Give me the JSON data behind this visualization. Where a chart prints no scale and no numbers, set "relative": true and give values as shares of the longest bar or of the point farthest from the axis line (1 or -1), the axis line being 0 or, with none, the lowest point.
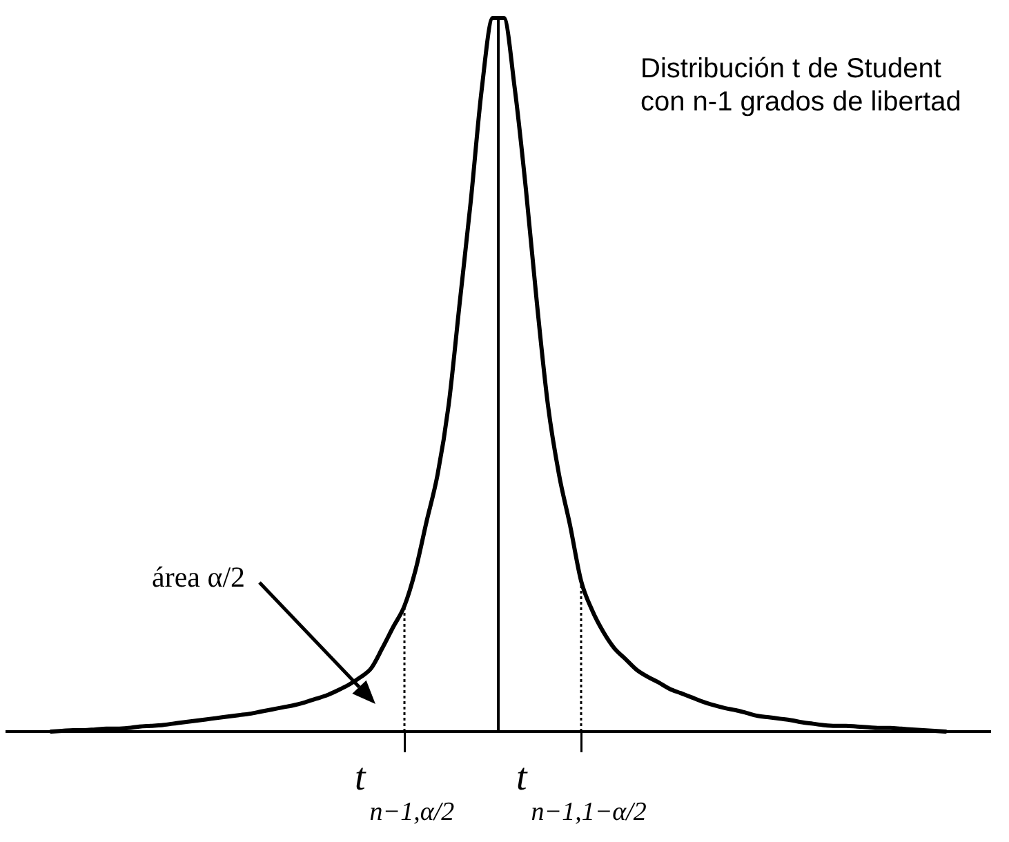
{
  "chart_data": {
    "type": "line",
    "title": "Distribución t de Student con n-1 grados de libertad",
    "categories": [
      null,
      null,
      null,
      null,
      null,
      null,
      null,
      null,
      null,
      null,
      null,
      null,
      null,
      null,
      null,
      null,
      null,
      null,
      null,
      null,
      null,
      null,
      null,
      null,
      null,
      null,
      null,
      null,
      null,
      null,
      null,
      null,
      null,
      null,
      null,
      null,
      "t$_{n−1,α/2}$",
      null,
      null,
      null,
      null,
      null,
      null,
      null,
      null,
      null,
      null,
      null,
      null,
      null,
      null,
      null,
      "t$_{n−1,1−α/2}$",
      null,
      null,
      null,
      null,
      null,
      null,
      null,
      null,
      null,
      null,
      null,
      null,
      null,
      null,
      null,
      null,
      null,
      null,
      null,
      null,
      null,
      null,
      null,
      null,
      null,
      null,
      null,
      null,
      null,
      null,
      null,
      null,
      null,
      null,
      null,
      null,
      null
    ],
    "values": [
      null,
      null,
      null,
      null,
      0,
      0.001,
      0.002,
      0.002,
      0.003,
      0.004,
      0.004,
      0.005,
      0.007,
      0.008,
      0.009,
      0.011,
      0.013,
      0.015,
      0.017,
      0.019,
      0.021,
      0.023,
      0.025,
      0.028,
      0.031,
      0.034,
      0.037,
      0.041,
      0.046,
      0.051,
      0.058,
      0.066,
      0.076,
      0.089,
      0.117,
      0.147,
      0.176,
      0.226,
      0.294,
      0.36,
      0.457,
      0.6,
      0.742,
      0.9,
      1,
      1,
      0.9,
      0.76,
      0.6,
      0.457,
      0.36,
      0.289,
      0.211,
      0.17,
      0.14,
      0.117,
      0.102,
      0.087,
      0.077,
      0.069,
      0.06,
      0.054,
      0.048,
      0.042,
      0.037,
      0.033,
      0.03,
      0.026,
      0.022,
      0.02,
      0.018,
      0.016,
      0.013,
      0.011,
      0.009,
      0.008,
      0.008,
      0.007,
      0.006,
      0.005,
      0.005,
      0.004,
      0.003,
      0.002,
      0.001,
      0,
      null,
      null,
      null,
      null
    ],
    "color": "#000000",
    "relative": true,
    "ref_lines": [
      {
        "axis": "x",
        "value": "t$_{n−1,α/2}$",
        "line_style": "dotted",
        "color": "#000000"
      },
      {
        "axis": "x",
        "value": "t$_{n−1,1−α/2}$",
        "line_style": "dotted",
        "color": "#000000"
      }
    ],
    "annotations": [
      "área α/2"
    ],
    "marker": "none",
    "grid": false,
    "legend": false
  }
}
